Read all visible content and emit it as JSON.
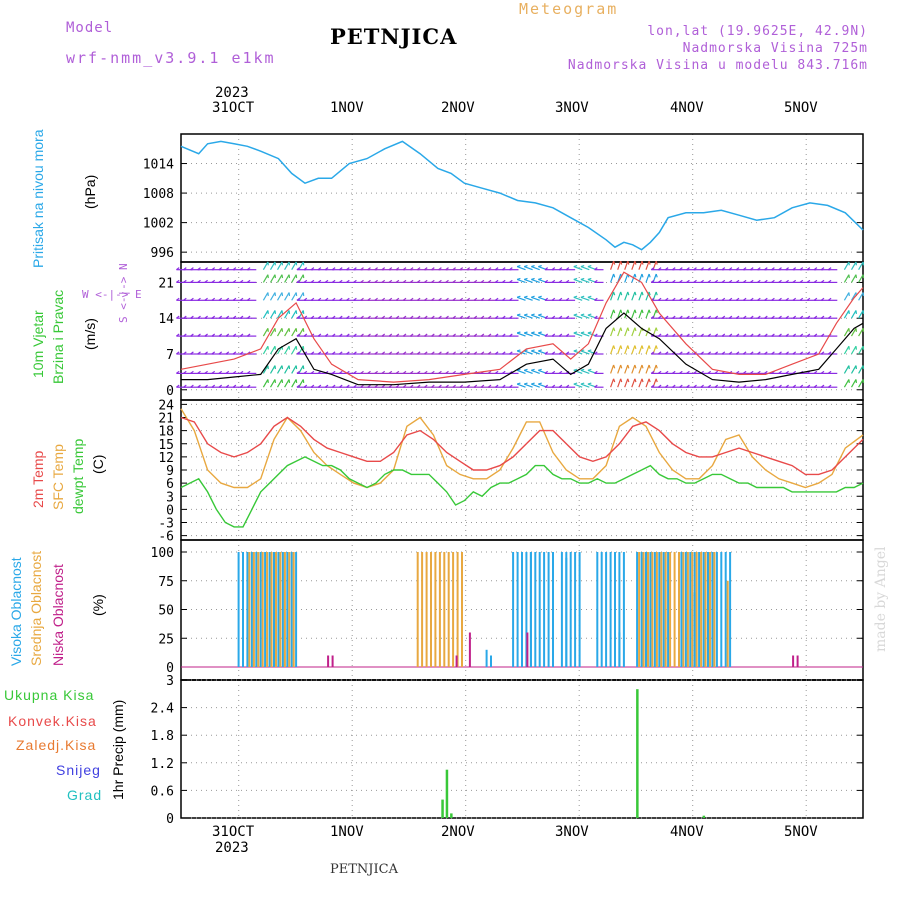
{
  "header": {
    "model_label": "Model",
    "model_name": "wrf-nmm_v3.9.1 e1km",
    "title": "PETNJICA",
    "subtitle": "Meteogram",
    "lonlat": "lon,lat (19.9625E, 42.9N)",
    "elevation": "Nadmorska Visina 725m",
    "model_elevation": "Nadmorska Visina u modelu 843.716m"
  },
  "footer": {
    "station": "PETNJICA",
    "signature": "made by Angel"
  },
  "dates": {
    "year": "2023",
    "top": [
      "31OCT",
      "1NOV",
      "2NOV",
      "3NOV",
      "4NOV",
      "5NOV"
    ],
    "bottom": [
      "31OCT",
      "1NOV",
      "2NOV",
      "3NOV",
      "4NOV",
      "5NOV"
    ]
  },
  "labels": {
    "pressure": [
      "Pritisak na nivou mora",
      "(hPa)"
    ],
    "wind": [
      "10m Vjetar",
      "Brzina i Pravac",
      "(m/s)"
    ],
    "wind_compass": "W <-|-> E",
    "wind_compass_v": "S <-|-> N",
    "temp": [
      "2m Temp",
      "SFC Temp",
      "dewpt Temp",
      "(C)"
    ],
    "cloud": [
      "Visoka Oblacnost",
      "Srednja Oblacnost",
      "Niska Oblacnost",
      "(%)"
    ],
    "precip_legend": [
      "Ukupna Kisa",
      "Konvek.Kisa",
      "Zaledj.Kisa",
      "Snijeg",
      "Grad"
    ],
    "precip_axis": "1hr Precip (mm)"
  },
  "colors": {
    "pressure": "#2aa8e8",
    "temp2m": "#e84a4a",
    "sfc": "#e8a840",
    "dew": "#38c838",
    "high_cloud": "#2aa8e8",
    "mid_cloud": "#e8a840",
    "low_cloud": "#c0208a",
    "precip_total": "#38c838",
    "convective": "#e84a4a",
    "freezing": "#e87a30",
    "snow": "#4040e0",
    "hail": "#20c0c0",
    "wind_speed": "#000000",
    "wind_gust": "#e84a4a"
  },
  "chart_data": [
    {
      "type": "line",
      "name": "pressure",
      "x_unit": "hours from 31OCT 00:00",
      "yticks": [
        996,
        1002,
        1008,
        1014
      ],
      "ylim": [
        994,
        1020
      ],
      "x": [
        -12,
        -8,
        -6,
        -3,
        0,
        3,
        6,
        10,
        13,
        16,
        19,
        22,
        26,
        30,
        34,
        38,
        42,
        46,
        49,
        52,
        56,
        60,
        64,
        68,
        72,
        76,
        80,
        84,
        86,
        88,
        90,
        92,
        94,
        96,
        98,
        102,
        106,
        110,
        114,
        118,
        122,
        126,
        130,
        134,
        138,
        142
      ],
      "values": [
        1017.5,
        1016,
        1018,
        1018.5,
        1018,
        1017.5,
        1016.5,
        1015,
        1012,
        1010,
        1011,
        1011,
        1014,
        1015,
        1017,
        1018.5,
        1016,
        1013,
        1012,
        1010,
        1009,
        1008,
        1006.5,
        1006,
        1005,
        1003,
        1001,
        998.5,
        997,
        998,
        997.5,
        996.5,
        998,
        1000,
        1003,
        1004,
        1004,
        1004.5,
        1003.5,
        1002.5,
        1003,
        1005,
        1006,
        1005.5,
        1004,
        1000.5
      ]
    },
    {
      "type": "line",
      "name": "wind",
      "yticks": [
        0,
        7,
        14,
        21
      ],
      "ylim": [
        -2,
        25
      ],
      "series": [
        {
          "name": "speed",
          "x": [
            -12,
            -6,
            0,
            6,
            10,
            14,
            18,
            22,
            28,
            36,
            44,
            52,
            60,
            66,
            72,
            76,
            80,
            84,
            88,
            92,
            96,
            102,
            108,
            114,
            120,
            126,
            132,
            136,
            140,
            142
          ],
          "values": [
            2,
            2,
            2.5,
            3,
            8,
            10,
            4,
            3,
            1,
            1,
            1.5,
            1.5,
            2,
            5,
            6,
            3,
            5,
            12,
            15,
            12,
            10,
            5,
            2,
            1.5,
            2,
            3,
            4,
            8,
            12,
            13
          ]
        },
        {
          "name": "gust",
          "x": [
            -12,
            -6,
            0,
            6,
            10,
            14,
            18,
            22,
            28,
            36,
            44,
            52,
            60,
            66,
            72,
            76,
            80,
            84,
            88,
            92,
            96,
            102,
            108,
            114,
            120,
            126,
            132,
            136,
            140,
            142
          ],
          "values": [
            4,
            5,
            6,
            8,
            14,
            17,
            10,
            5,
            2,
            1.5,
            2,
            3,
            4,
            8,
            9,
            6,
            9,
            17,
            23,
            21,
            15,
            9,
            4,
            3,
            3,
            5,
            7,
            13,
            18,
            20
          ]
        }
      ]
    },
    {
      "type": "line",
      "name": "temperature",
      "yticks": [
        -6,
        -3,
        0,
        3,
        6,
        9,
        12,
        15,
        18,
        21,
        24
      ],
      "ylim": [
        -7,
        25
      ],
      "series": [
        {
          "name": "2m",
          "x": [
            -12,
            -9,
            -6,
            -3,
            0,
            3,
            6,
            9,
            12,
            15,
            18,
            21,
            24,
            27,
            30,
            33,
            36,
            39,
            42,
            45,
            48,
            51,
            54,
            57,
            60,
            63,
            66,
            69,
            72,
            75,
            78,
            81,
            84,
            87,
            90,
            93,
            96,
            99,
            102,
            105,
            108,
            111,
            114,
            117,
            120,
            123,
            126,
            129,
            132,
            135,
            138,
            142
          ],
          "values": [
            21,
            20,
            15,
            13,
            12,
            13,
            15,
            19,
            21,
            19,
            16,
            14,
            13,
            12,
            11,
            11,
            13,
            17,
            18,
            16,
            13,
            11,
            9,
            9,
            10,
            12,
            15,
            18,
            18,
            15,
            12,
            11,
            12,
            15,
            19,
            20,
            18,
            15,
            13,
            12,
            12,
            13,
            14,
            13,
            12,
            11,
            10,
            8,
            8,
            9,
            12,
            16
          ]
        },
        {
          "name": "sfc",
          "x": [
            -12,
            -9,
            -6,
            -3,
            0,
            3,
            6,
            9,
            12,
            15,
            18,
            21,
            24,
            27,
            30,
            33,
            36,
            39,
            42,
            45,
            48,
            51,
            54,
            57,
            60,
            63,
            66,
            69,
            72,
            75,
            78,
            81,
            84,
            87,
            90,
            93,
            96,
            99,
            102,
            105,
            108,
            111,
            114,
            117,
            120,
            123,
            126,
            129,
            132,
            135,
            138,
            142
          ],
          "values": [
            23,
            18,
            9,
            6,
            5,
            5,
            7,
            16,
            21,
            18,
            13,
            10,
            8,
            6,
            5,
            6,
            9,
            19,
            21,
            17,
            10,
            8,
            7,
            7,
            9,
            14,
            20,
            20,
            13,
            9,
            7,
            7,
            10,
            19,
            21,
            19,
            13,
            9,
            7,
            7,
            10,
            16,
            17,
            12,
            9,
            7,
            6,
            5,
            6,
            8,
            14,
            17
          ]
        },
        {
          "name": "dewpoint",
          "x": [
            -12,
            -10,
            -8,
            -6,
            -4,
            -2,
            0,
            2,
            4,
            6,
            8,
            10,
            12,
            14,
            16,
            18,
            20,
            22,
            24,
            26,
            28,
            30,
            32,
            34,
            36,
            38,
            40,
            42,
            44,
            46,
            48,
            50,
            52,
            54,
            56,
            58,
            60,
            62,
            64,
            66,
            68,
            70,
            72,
            74,
            76,
            78,
            80,
            82,
            84,
            86,
            88,
            90,
            92,
            94,
            96,
            98,
            100,
            102,
            104,
            106,
            108,
            110,
            112,
            114,
            116,
            118,
            120,
            122,
            124,
            126,
            128,
            130,
            132,
            134,
            136,
            138,
            140,
            142
          ],
          "values": [
            5,
            6,
            7,
            4,
            0,
            -3,
            -4,
            -4,
            0,
            4,
            6,
            8,
            10,
            11,
            12,
            11,
            10,
            10,
            9,
            7,
            6,
            5,
            6,
            8,
            9,
            9,
            8,
            8,
            8,
            6,
            4,
            1,
            2,
            4,
            3,
            5,
            6,
            6,
            7,
            8,
            10,
            10,
            8,
            7,
            7,
            6,
            6,
            7,
            6,
            6,
            7,
            8,
            9,
            10,
            8,
            7,
            7,
            6,
            6,
            7,
            8,
            8,
            7,
            6,
            6,
            5,
            5,
            5,
            5,
            4,
            4,
            4,
            4,
            4,
            4,
            5,
            5,
            6
          ]
        }
      ]
    },
    {
      "type": "bar",
      "name": "cloud",
      "yticks": [
        0,
        25,
        50,
        75,
        100
      ],
      "ylim": [
        0,
        100
      ],
      "blocks_high": [
        [
          1,
          14,
          100
        ],
        [
          63,
          72,
          100
        ],
        [
          74,
          78,
          100
        ],
        [
          82,
          88,
          100
        ],
        [
          91,
          98,
          100
        ],
        [
          101,
          112,
          100
        ]
      ],
      "high_single": [
        [
          2,
          80
        ],
        [
          65,
          100
        ],
        [
          67,
          100
        ],
        [
          57,
          15
        ],
        [
          58,
          10
        ],
        [
          75,
          95
        ],
        [
          87,
          30
        ],
        [
          104,
          65
        ]
      ],
      "blocks_mid": [
        [
          3,
          13,
          100
        ],
        [
          41,
          51,
          100
        ],
        [
          91,
          103,
          100
        ],
        [
          104,
          108,
          100
        ]
      ],
      "mid_single": [
        [
          92,
          95
        ],
        [
          111,
          75
        ]
      ],
      "low_spikes": [
        [
          21,
          10
        ],
        [
          22,
          10
        ],
        [
          50,
          10
        ],
        [
          66,
          30
        ],
        [
          126,
          10
        ],
        [
          127,
          10
        ]
      ],
      "low_single": [
        [
          53,
          30
        ]
      ]
    },
    {
      "type": "bar",
      "name": "precip",
      "yticks": [
        0,
        0.6,
        1.2,
        1.8,
        2.4,
        3
      ],
      "ylim": [
        0,
        3
      ],
      "total": [
        [
          47,
          0.4
        ],
        [
          48,
          1.05
        ],
        [
          49,
          0.1
        ],
        [
          91,
          2.8
        ],
        [
          106,
          0.05
        ]
      ],
      "snow": []
    }
  ]
}
